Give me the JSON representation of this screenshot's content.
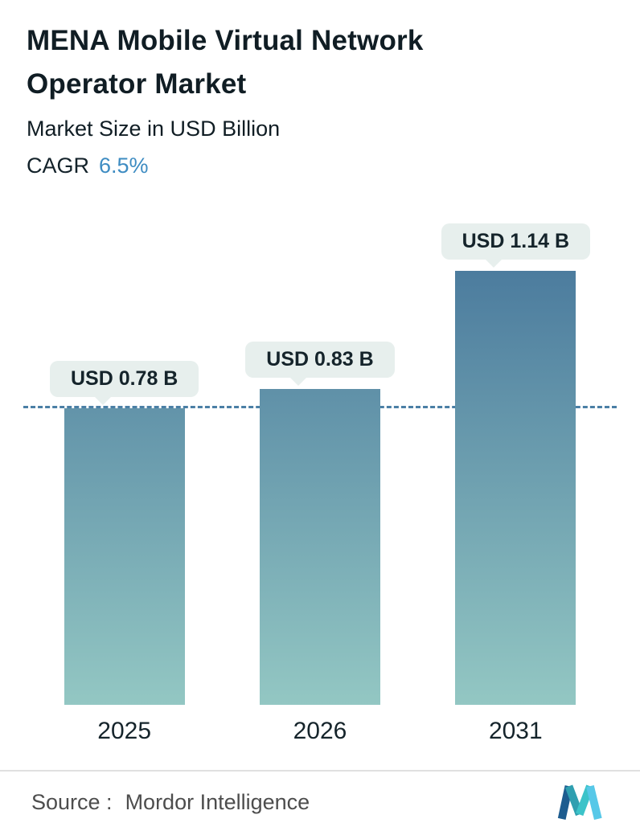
{
  "header": {
    "title_line1": "MENA Mobile Virtual Network",
    "title_line2": "Operator Market",
    "subtitle": "Market Size in USD Billion",
    "cagr_label": "CAGR",
    "cagr_value": "6.5%"
  },
  "chart_data": {
    "type": "bar",
    "title": "MENA Mobile Virtual Network Operator Market",
    "ylabel": "Market Size in USD Billion",
    "categories": [
      "2025",
      "2026",
      "2031"
    ],
    "values": [
      0.78,
      0.83,
      1.14
    ],
    "value_labels": [
      "USD 0.78 B",
      "USD 0.83 B",
      "USD 1.14 B"
    ],
    "ylim": [
      0,
      1.2
    ],
    "reference_line": 0.78,
    "grid": false,
    "legend": "none",
    "colors": {
      "bar_top": "#4c7c9e",
      "bar_bottom": "#93c7c3",
      "dashed_line": "#4a7fa5",
      "pill_bg": "#e7efed",
      "accent": "#3e8cc2"
    }
  },
  "footer": {
    "source_label": "Source :",
    "source_value": "Mordor Intelligence",
    "logo_name": "mordor-intelligence-logo"
  }
}
